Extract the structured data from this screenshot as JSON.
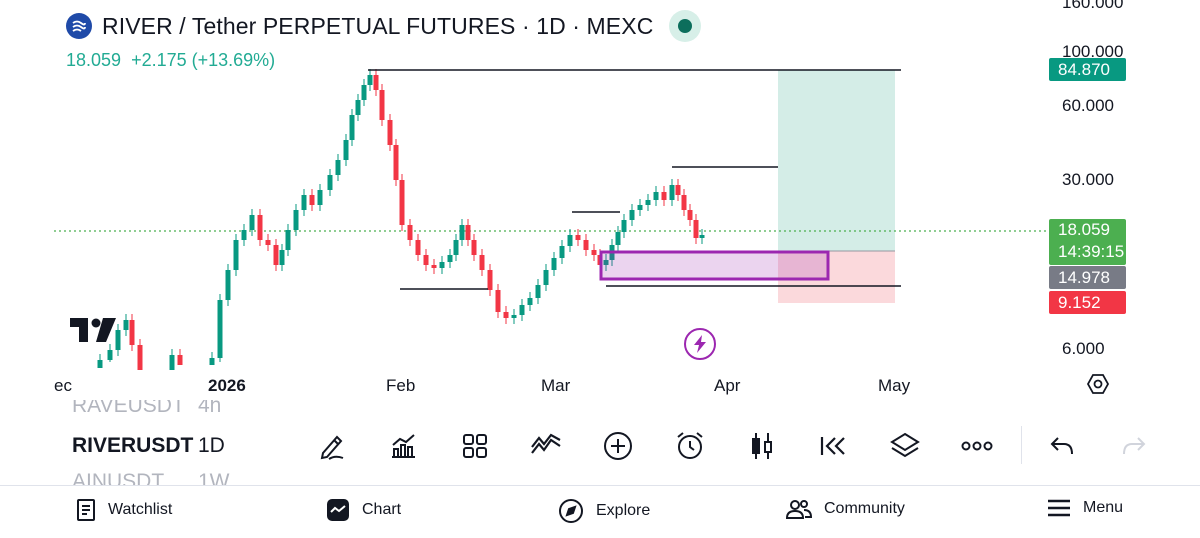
{
  "header": {
    "title": "RIVER / Tether PERPETUAL FUTURES · 1D · MEXC",
    "price": "18.059",
    "change": "+2.175 (+13.69%)"
  },
  "colors": {
    "up": "#22ab94",
    "up_candle": "#089981",
    "down": "#f23645",
    "accent": "#9c27b0",
    "profit_zone": "#d4ede7",
    "loss_zone": "#fbd9dc"
  },
  "price_axis": {
    "labels": [
      "160.000",
      "100.000",
      "60.000",
      "30.000",
      "6.000"
    ],
    "badges": [
      {
        "text": "84.870",
        "color": "#089981"
      },
      {
        "text": "18.059",
        "text2": "14:39:15",
        "color": "#4caf50"
      },
      {
        "text": "14.978",
        "color": "#787b86"
      },
      {
        "text": "9.152",
        "color": "#f23645"
      }
    ]
  },
  "time_axis": {
    "labels": [
      "ec",
      "2026",
      "Feb",
      "Mar",
      "Apr",
      "May"
    ]
  },
  "symbols": [
    {
      "symbol": "RAVEUSDT",
      "interval": "4h"
    },
    {
      "symbol": "RIVERUSDT",
      "interval": "1D"
    },
    {
      "symbol": "AINUSDT",
      "interval": "1W"
    }
  ],
  "toolbar": [
    {
      "name": "pencil-draw-icon"
    },
    {
      "name": "indicators-icon"
    },
    {
      "name": "layout-grid-icon"
    },
    {
      "name": "patterns-icon"
    },
    {
      "name": "add-circle-icon"
    },
    {
      "name": "alarm-icon"
    },
    {
      "name": "candles-icon"
    },
    {
      "name": "replay-icon"
    },
    {
      "name": "layers-icon"
    },
    {
      "name": "more-icon"
    },
    {
      "name": "undo-icon"
    },
    {
      "name": "redo-icon"
    }
  ],
  "nav": {
    "watchlist": "Watchlist",
    "chart": "Chart",
    "explore": "Explore",
    "community": "Community",
    "menu": "Menu"
  }
}
